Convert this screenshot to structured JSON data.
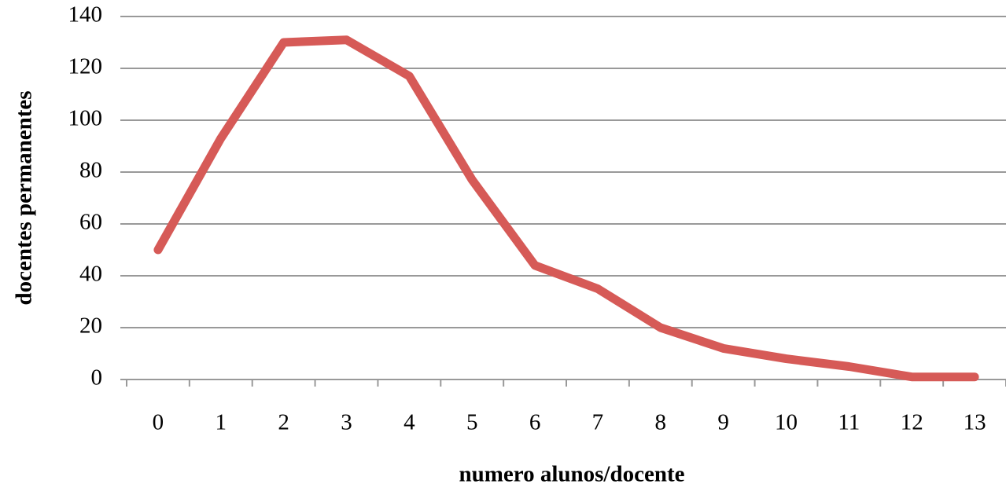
{
  "chart_data": {
    "type": "line",
    "x_label": "numero alunos/docente",
    "y_label": "docentes permanentes",
    "categories": [
      "0",
      "1",
      "2",
      "3",
      "4",
      "5",
      "6",
      "7",
      "8",
      "9",
      "10",
      "11",
      "12",
      "13"
    ],
    "series": [
      {
        "color": "#d65a57",
        "values": [
          50,
          93,
          130,
          131,
          117,
          77,
          44,
          35,
          20,
          12,
          8,
          5,
          1,
          1
        ]
      }
    ],
    "ylim": [
      0,
      140
    ],
    "yticks": [
      0,
      20,
      40,
      60,
      80,
      100,
      120,
      140
    ],
    "grid": true
  }
}
